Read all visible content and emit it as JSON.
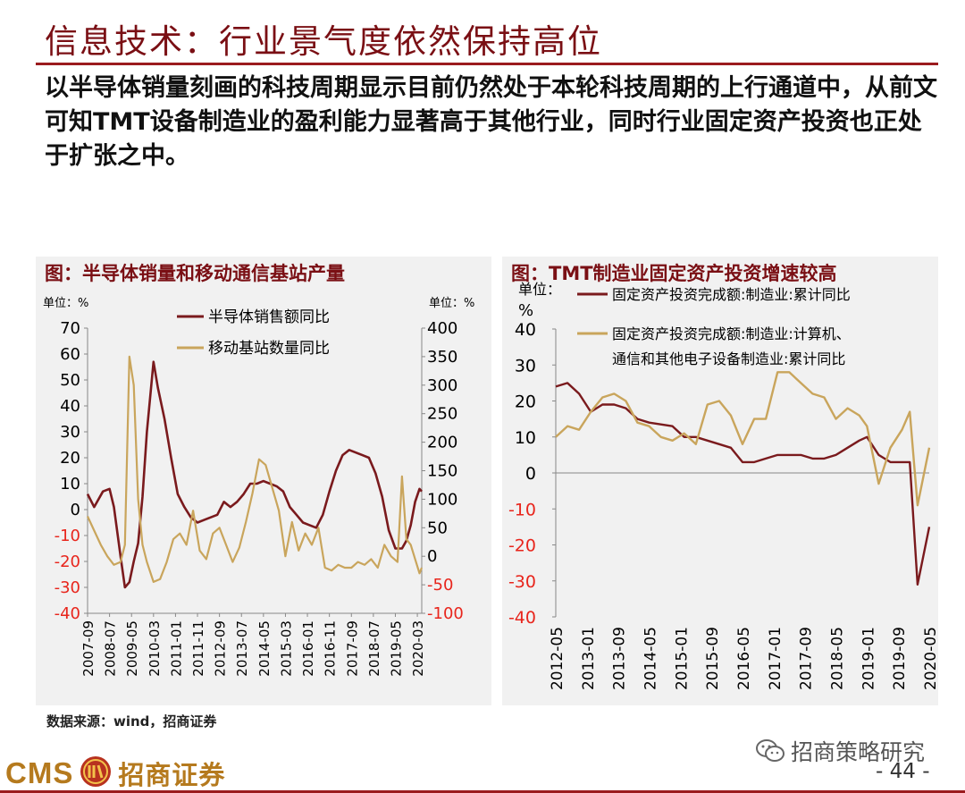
{
  "slide": {
    "title": "信息技术：行业景气度依然保持高位",
    "summary": "以半导体销量刻画的科技周期显示目前仍然处于本轮科技周期的上行通道中，从前文可知TMT设备制造业的盈利能力显著高于其他行业，同时行业固定资产投资也正处于扩张之中。",
    "source": "数据来源：wind，招商证券",
    "watermark": "招商策略研究",
    "page_number": "- 44 -",
    "logo_text": "CMS",
    "logo_cn": "招商证券"
  },
  "colors": {
    "brand": "#9b1b1e",
    "series_dark": "#7a1a1d",
    "series_gold": "#c9a55c",
    "negative_tick": "#e8251c",
    "logo_gold": "#b57a1e"
  },
  "chart_data": [
    {
      "type": "line",
      "title": "图：半导体销量和移动通信基站产量",
      "unit_left": "单位：%",
      "unit_right": "单位：%",
      "ylim_left": [
        -40,
        70
      ],
      "yticks_left": [
        "70",
        "60",
        "50",
        "40",
        "30",
        "20",
        "10",
        "0",
        "-10",
        "-20",
        "-30",
        "-40"
      ],
      "ylim_right": [
        -100,
        400
      ],
      "yticks_right": [
        "400",
        "350",
        "300",
        "250",
        "200",
        "150",
        "100",
        "50",
        "0",
        "-50",
        "-100"
      ],
      "x_range": [
        "2007-09",
        "2020-05"
      ],
      "x_tick_labels": [
        "2007-09",
        "2008-07",
        "2009-05",
        "2010-03",
        "2011-01",
        "2011-11",
        "2012-09",
        "2013-07",
        "2014-05",
        "2015-03",
        "2016-01",
        "2016-11",
        "2017-09",
        "2018-07",
        "2019-05",
        "2020-03"
      ],
      "legend_position": "top-center",
      "series": [
        {
          "name": "半导体销售额同比",
          "axis": "left",
          "color": "#7a1a1d",
          "points": [
            [
              "2007-09",
              6
            ],
            [
              "2007-12",
              1
            ],
            [
              "2008-04",
              7
            ],
            [
              "2008-07",
              8
            ],
            [
              "2008-09",
              1
            ],
            [
              "2008-12",
              -18
            ],
            [
              "2009-02",
              -30
            ],
            [
              "2009-04",
              -28
            ],
            [
              "2009-06",
              -20
            ],
            [
              "2009-08",
              -13
            ],
            [
              "2009-10",
              5
            ],
            [
              "2009-12",
              30
            ],
            [
              "2010-03",
              57
            ],
            [
              "2010-05",
              47
            ],
            [
              "2010-08",
              35
            ],
            [
              "2010-11",
              20
            ],
            [
              "2011-02",
              6
            ],
            [
              "2011-05",
              1
            ],
            [
              "2011-08",
              -3
            ],
            [
              "2011-11",
              -5
            ],
            [
              "2012-02",
              -4
            ],
            [
              "2012-05",
              -3
            ],
            [
              "2012-08",
              -2
            ],
            [
              "2012-11",
              3
            ],
            [
              "2013-02",
              1
            ],
            [
              "2013-05",
              3
            ],
            [
              "2013-08",
              6
            ],
            [
              "2013-11",
              10
            ],
            [
              "2014-02",
              10
            ],
            [
              "2014-05",
              11
            ],
            [
              "2014-08",
              10
            ],
            [
              "2014-11",
              9
            ],
            [
              "2015-02",
              7
            ],
            [
              "2015-05",
              1
            ],
            [
              "2015-08",
              -2
            ],
            [
              "2015-11",
              -5
            ],
            [
              "2016-02",
              -6
            ],
            [
              "2016-05",
              -7
            ],
            [
              "2016-08",
              -2
            ],
            [
              "2016-11",
              7
            ],
            [
              "2017-02",
              15
            ],
            [
              "2017-05",
              21
            ],
            [
              "2017-08",
              23
            ],
            [
              "2017-11",
              22
            ],
            [
              "2018-02",
              21
            ],
            [
              "2018-05",
              20
            ],
            [
              "2018-08",
              14
            ],
            [
              "2018-11",
              5
            ],
            [
              "2019-02",
              -8
            ],
            [
              "2019-05",
              -15
            ],
            [
              "2019-08",
              -15
            ],
            [
              "2019-10",
              -12
            ],
            [
              "2019-12",
              -6
            ],
            [
              "2020-02",
              3
            ],
            [
              "2020-04",
              8
            ],
            [
              "2020-05",
              7
            ]
          ]
        },
        {
          "name": "移动基站数量同比",
          "axis": "right",
          "color": "#c9a55c",
          "points": [
            [
              "2007-09",
              70
            ],
            [
              "2007-12",
              45
            ],
            [
              "2008-03",
              20
            ],
            [
              "2008-06",
              0
            ],
            [
              "2008-09",
              -15
            ],
            [
              "2008-12",
              -10
            ],
            [
              "2009-02",
              20
            ],
            [
              "2009-04",
              350
            ],
            [
              "2009-06",
              300
            ],
            [
              "2009-08",
              100
            ],
            [
              "2009-10",
              20
            ],
            [
              "2009-12",
              -10
            ],
            [
              "2010-03",
              -45
            ],
            [
              "2010-06",
              -40
            ],
            [
              "2010-09",
              -10
            ],
            [
              "2010-12",
              30
            ],
            [
              "2011-03",
              40
            ],
            [
              "2011-06",
              20
            ],
            [
              "2011-09",
              80
            ],
            [
              "2011-12",
              10
            ],
            [
              "2012-03",
              -5
            ],
            [
              "2012-06",
              40
            ],
            [
              "2012-09",
              50
            ],
            [
              "2012-12",
              20
            ],
            [
              "2013-03",
              -10
            ],
            [
              "2013-06",
              15
            ],
            [
              "2013-09",
              60
            ],
            [
              "2013-12",
              110
            ],
            [
              "2014-03",
              170
            ],
            [
              "2014-06",
              160
            ],
            [
              "2014-09",
              120
            ],
            [
              "2014-12",
              80
            ],
            [
              "2015-03",
              0
            ],
            [
              "2015-06",
              60
            ],
            [
              "2015-09",
              10
            ],
            [
              "2015-12",
              40
            ],
            [
              "2016-03",
              20
            ],
            [
              "2016-06",
              50
            ],
            [
              "2016-09",
              -20
            ],
            [
              "2016-12",
              -25
            ],
            [
              "2017-03",
              -15
            ],
            [
              "2017-06",
              -20
            ],
            [
              "2017-09",
              -20
            ],
            [
              "2017-12",
              -10
            ],
            [
              "2018-03",
              -15
            ],
            [
              "2018-06",
              -5
            ],
            [
              "2018-09",
              -20
            ],
            [
              "2018-12",
              20
            ],
            [
              "2019-03",
              0
            ],
            [
              "2019-06",
              -10
            ],
            [
              "2019-08",
              140
            ],
            [
              "2019-10",
              30
            ],
            [
              "2019-12",
              20
            ],
            [
              "2020-02",
              -5
            ],
            [
              "2020-04",
              -30
            ],
            [
              "2020-05",
              -20
            ]
          ]
        }
      ]
    },
    {
      "type": "line",
      "title": "图：TMT制造业固定资产投资增速较高",
      "unit": "单位：%",
      "ylim": [
        -40,
        40
      ],
      "yticks": [
        "40",
        "30",
        "20",
        "10",
        "0",
        "-10",
        "-20",
        "-30",
        "-40"
      ],
      "x_range": [
        "2012-05",
        "2020-05"
      ],
      "x_tick_labels": [
        "2012-05",
        "2013-01",
        "2013-09",
        "2014-05",
        "2015-01",
        "2015-09",
        "2016-05",
        "2017-01",
        "2017-09",
        "2018-05",
        "2019-01",
        "2019-09",
        "2020-05"
      ],
      "legend_position": "top-center",
      "series": [
        {
          "name": "固定资产投资完成额:制造业:累计同比",
          "color": "#7a1a1d",
          "points": [
            [
              "2012-05",
              24
            ],
            [
              "2012-08",
              25
            ],
            [
              "2012-11",
              22
            ],
            [
              "2013-02",
              17
            ],
            [
              "2013-05",
              19
            ],
            [
              "2013-08",
              19
            ],
            [
              "2013-11",
              18
            ],
            [
              "2014-02",
              15
            ],
            [
              "2014-05",
              14
            ],
            [
              "2014-08",
              13.5
            ],
            [
              "2014-11",
              13
            ],
            [
              "2015-02",
              10
            ],
            [
              "2015-05",
              10
            ],
            [
              "2015-08",
              9
            ],
            [
              "2015-11",
              8
            ],
            [
              "2016-02",
              7
            ],
            [
              "2016-05",
              3
            ],
            [
              "2016-08",
              3
            ],
            [
              "2016-11",
              4
            ],
            [
              "2017-02",
              5
            ],
            [
              "2017-05",
              5
            ],
            [
              "2017-08",
              5
            ],
            [
              "2017-11",
              4
            ],
            [
              "2018-02",
              4
            ],
            [
              "2018-05",
              5
            ],
            [
              "2018-08",
              7
            ],
            [
              "2018-11",
              9
            ],
            [
              "2019-01",
              10
            ],
            [
              "2019-04",
              5
            ],
            [
              "2019-07",
              3
            ],
            [
              "2019-10",
              3
            ],
            [
              "2019-12",
              3
            ],
            [
              "2020-02",
              -31
            ],
            [
              "2020-05",
              -15
            ]
          ]
        },
        {
          "name": "固定资产投资完成额:制造业:计算机、通信和其他电子设备制造业:累计同比",
          "color": "#c9a55c",
          "points": [
            [
              "2012-05",
              10
            ],
            [
              "2012-08",
              13
            ],
            [
              "2012-11",
              12
            ],
            [
              "2013-02",
              17
            ],
            [
              "2013-05",
              21
            ],
            [
              "2013-08",
              22
            ],
            [
              "2013-11",
              20
            ],
            [
              "2014-02",
              14
            ],
            [
              "2014-05",
              13
            ],
            [
              "2014-08",
              10
            ],
            [
              "2014-11",
              9
            ],
            [
              "2015-02",
              11
            ],
            [
              "2015-05",
              8
            ],
            [
              "2015-08",
              19
            ],
            [
              "2015-11",
              20
            ],
            [
              "2016-02",
              16
            ],
            [
              "2016-05",
              8
            ],
            [
              "2016-08",
              15
            ],
            [
              "2016-11",
              15
            ],
            [
              "2017-02",
              28
            ],
            [
              "2017-05",
              28
            ],
            [
              "2017-08",
              25
            ],
            [
              "2017-11",
              22
            ],
            [
              "2018-02",
              21
            ],
            [
              "2018-05",
              15
            ],
            [
              "2018-08",
              18
            ],
            [
              "2018-11",
              16
            ],
            [
              "2019-01",
              13
            ],
            [
              "2019-04",
              -3
            ],
            [
              "2019-07",
              7
            ],
            [
              "2019-10",
              12
            ],
            [
              "2019-12",
              17
            ],
            [
              "2020-02",
              -9
            ],
            [
              "2020-05",
              7
            ]
          ]
        }
      ]
    }
  ]
}
